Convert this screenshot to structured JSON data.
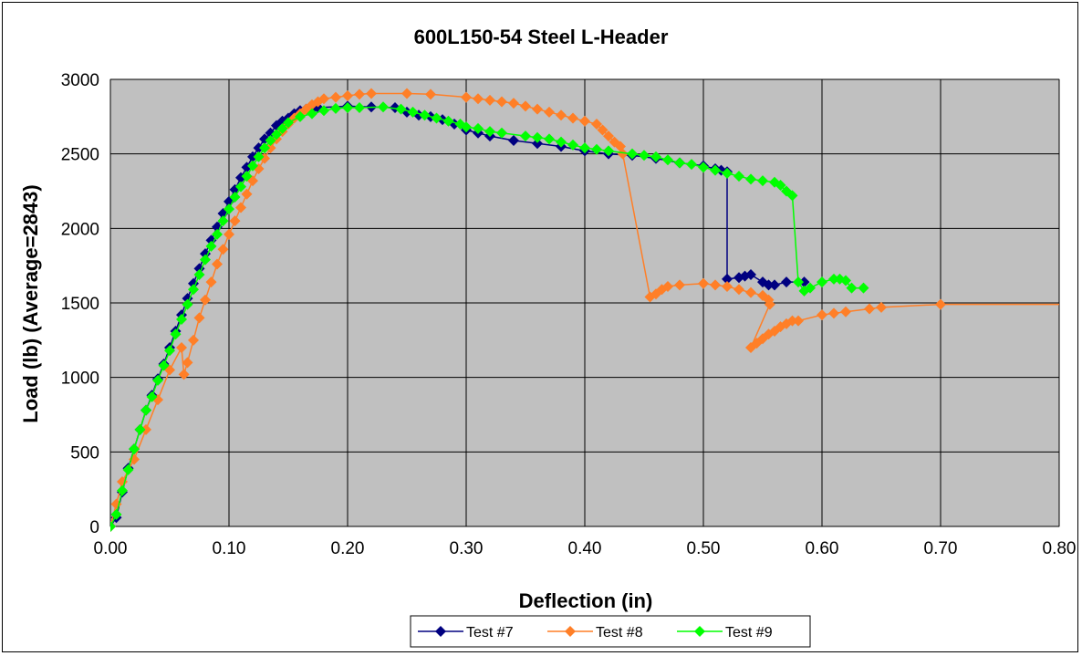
{
  "chart_data": {
    "type": "scatter",
    "title": "600L150-54 Steel L-Header",
    "xlabel": "Deflection (in)",
    "ylabel": "Load (lb) (Average=2843)",
    "xlim": [
      0,
      0.8
    ],
    "ylim": [
      0,
      3000
    ],
    "xticks": [
      "0.00",
      "0.10",
      "0.20",
      "0.30",
      "0.40",
      "0.50",
      "0.60",
      "0.70",
      "0.80"
    ],
    "yticks": [
      "0",
      "500",
      "1000",
      "1500",
      "2000",
      "2500",
      "3000"
    ],
    "grid": true,
    "plot_background": "#c0c0c0",
    "legend_position": "bottom",
    "series": [
      {
        "name": "Test #7",
        "color": "#000080",
        "marker": "diamond",
        "points": [
          [
            0.0,
            0
          ],
          [
            0.005,
            60
          ],
          [
            0.01,
            230
          ],
          [
            0.015,
            390
          ],
          [
            0.02,
            520
          ],
          [
            0.025,
            650
          ],
          [
            0.03,
            780
          ],
          [
            0.035,
            880
          ],
          [
            0.04,
            990
          ],
          [
            0.045,
            1090
          ],
          [
            0.05,
            1200
          ],
          [
            0.055,
            1310
          ],
          [
            0.06,
            1420
          ],
          [
            0.065,
            1530
          ],
          [
            0.07,
            1630
          ],
          [
            0.075,
            1730
          ],
          [
            0.08,
            1830
          ],
          [
            0.085,
            1920
          ],
          [
            0.09,
            2010
          ],
          [
            0.095,
            2100
          ],
          [
            0.1,
            2180
          ],
          [
            0.105,
            2260
          ],
          [
            0.11,
            2340
          ],
          [
            0.115,
            2410
          ],
          [
            0.12,
            2480
          ],
          [
            0.125,
            2540
          ],
          [
            0.13,
            2600
          ],
          [
            0.135,
            2640
          ],
          [
            0.14,
            2690
          ],
          [
            0.145,
            2720
          ],
          [
            0.15,
            2740
          ],
          [
            0.155,
            2770
          ],
          [
            0.16,
            2790
          ],
          [
            0.165,
            2800
          ],
          [
            0.17,
            2800
          ],
          [
            0.175,
            2810
          ],
          [
            0.2,
            2820
          ],
          [
            0.22,
            2815
          ],
          [
            0.24,
            2810
          ],
          [
            0.25,
            2780
          ],
          [
            0.26,
            2760
          ],
          [
            0.27,
            2750
          ],
          [
            0.28,
            2730
          ],
          [
            0.29,
            2700
          ],
          [
            0.3,
            2660
          ],
          [
            0.31,
            2640
          ],
          [
            0.32,
            2620
          ],
          [
            0.34,
            2590
          ],
          [
            0.36,
            2570
          ],
          [
            0.38,
            2550
          ],
          [
            0.4,
            2520
          ],
          [
            0.42,
            2500
          ],
          [
            0.44,
            2490
          ],
          [
            0.46,
            2470
          ],
          [
            0.48,
            2440
          ],
          [
            0.5,
            2420
          ],
          [
            0.51,
            2400
          ],
          [
            0.515,
            2390
          ],
          [
            0.52,
            2380
          ],
          [
            0.52,
            1660
          ],
          [
            0.53,
            1670
          ],
          [
            0.535,
            1680
          ],
          [
            0.54,
            1690
          ],
          [
            0.55,
            1640
          ],
          [
            0.555,
            1620
          ],
          [
            0.56,
            1620
          ],
          [
            0.57,
            1640
          ],
          [
            0.585,
            1640
          ]
        ]
      },
      {
        "name": "Test #8",
        "color": "#ff7f27",
        "marker": "diamond",
        "points": [
          [
            0.0,
            0
          ],
          [
            0.005,
            150
          ],
          [
            0.01,
            300
          ],
          [
            0.02,
            450
          ],
          [
            0.03,
            650
          ],
          [
            0.04,
            850
          ],
          [
            0.05,
            1050
          ],
          [
            0.06,
            1200
          ],
          [
            0.062,
            1020
          ],
          [
            0.065,
            1100
          ],
          [
            0.07,
            1250
          ],
          [
            0.075,
            1400
          ],
          [
            0.08,
            1520
          ],
          [
            0.085,
            1640
          ],
          [
            0.09,
            1760
          ],
          [
            0.095,
            1860
          ],
          [
            0.1,
            1960
          ],
          [
            0.105,
            2050
          ],
          [
            0.11,
            2140
          ],
          [
            0.115,
            2230
          ],
          [
            0.12,
            2320
          ],
          [
            0.125,
            2400
          ],
          [
            0.13,
            2470
          ],
          [
            0.135,
            2540
          ],
          [
            0.14,
            2600
          ],
          [
            0.145,
            2650
          ],
          [
            0.15,
            2700
          ],
          [
            0.155,
            2740
          ],
          [
            0.16,
            2770
          ],
          [
            0.165,
            2800
          ],
          [
            0.17,
            2830
          ],
          [
            0.175,
            2850
          ],
          [
            0.18,
            2870
          ],
          [
            0.19,
            2880
          ],
          [
            0.2,
            2890
          ],
          [
            0.21,
            2900
          ],
          [
            0.22,
            2905
          ],
          [
            0.25,
            2905
          ],
          [
            0.27,
            2900
          ],
          [
            0.3,
            2880
          ],
          [
            0.31,
            2870
          ],
          [
            0.32,
            2860
          ],
          [
            0.33,
            2850
          ],
          [
            0.34,
            2840
          ],
          [
            0.35,
            2820
          ],
          [
            0.36,
            2800
          ],
          [
            0.37,
            2780
          ],
          [
            0.38,
            2760
          ],
          [
            0.39,
            2740
          ],
          [
            0.4,
            2720
          ],
          [
            0.41,
            2700
          ],
          [
            0.415,
            2660
          ],
          [
            0.42,
            2620
          ],
          [
            0.425,
            2580
          ],
          [
            0.43,
            2550
          ],
          [
            0.432,
            2500
          ],
          [
            0.455,
            1540
          ],
          [
            0.46,
            1560
          ],
          [
            0.465,
            1590
          ],
          [
            0.47,
            1610
          ],
          [
            0.48,
            1620
          ],
          [
            0.5,
            1630
          ],
          [
            0.51,
            1620
          ],
          [
            0.52,
            1610
          ],
          [
            0.53,
            1590
          ],
          [
            0.54,
            1570
          ],
          [
            0.55,
            1550
          ],
          [
            0.555,
            1520
          ],
          [
            0.556,
            1490
          ],
          [
            0.54,
            1200
          ],
          [
            0.545,
            1230
          ],
          [
            0.55,
            1260
          ],
          [
            0.555,
            1290
          ],
          [
            0.56,
            1310
          ],
          [
            0.565,
            1340
          ],
          [
            0.57,
            1360
          ],
          [
            0.575,
            1380
          ],
          [
            0.58,
            1380
          ],
          [
            0.6,
            1420
          ],
          [
            0.61,
            1430
          ],
          [
            0.62,
            1440
          ],
          [
            0.64,
            1460
          ],
          [
            0.65,
            1470
          ],
          [
            0.7,
            1490
          ],
          [
            0.8,
            1490
          ]
        ]
      },
      {
        "name": "Test #9",
        "color": "#00ff00",
        "marker": "diamond",
        "points": [
          [
            0.0,
            0
          ],
          [
            0.005,
            80
          ],
          [
            0.01,
            240
          ],
          [
            0.015,
            380
          ],
          [
            0.02,
            520
          ],
          [
            0.025,
            650
          ],
          [
            0.03,
            780
          ],
          [
            0.035,
            870
          ],
          [
            0.04,
            980
          ],
          [
            0.045,
            1080
          ],
          [
            0.05,
            1180
          ],
          [
            0.055,
            1290
          ],
          [
            0.06,
            1390
          ],
          [
            0.065,
            1490
          ],
          [
            0.07,
            1590
          ],
          [
            0.075,
            1690
          ],
          [
            0.08,
            1790
          ],
          [
            0.085,
            1880
          ],
          [
            0.09,
            1960
          ],
          [
            0.095,
            2050
          ],
          [
            0.1,
            2130
          ],
          [
            0.105,
            2210
          ],
          [
            0.11,
            2280
          ],
          [
            0.115,
            2350
          ],
          [
            0.12,
            2420
          ],
          [
            0.125,
            2480
          ],
          [
            0.13,
            2540
          ],
          [
            0.135,
            2590
          ],
          [
            0.14,
            2630
          ],
          [
            0.145,
            2670
          ],
          [
            0.15,
            2710
          ],
          [
            0.16,
            2750
          ],
          [
            0.17,
            2770
          ],
          [
            0.18,
            2790
          ],
          [
            0.19,
            2805
          ],
          [
            0.2,
            2810
          ],
          [
            0.21,
            2810
          ],
          [
            0.23,
            2815
          ],
          [
            0.245,
            2800
          ],
          [
            0.255,
            2780
          ],
          [
            0.265,
            2760
          ],
          [
            0.275,
            2740
          ],
          [
            0.285,
            2720
          ],
          [
            0.295,
            2700
          ],
          [
            0.3,
            2680
          ],
          [
            0.31,
            2670
          ],
          [
            0.32,
            2650
          ],
          [
            0.33,
            2640
          ],
          [
            0.35,
            2620
          ],
          [
            0.36,
            2610
          ],
          [
            0.37,
            2600
          ],
          [
            0.38,
            2580
          ],
          [
            0.39,
            2560
          ],
          [
            0.4,
            2540
          ],
          [
            0.41,
            2530
          ],
          [
            0.42,
            2520
          ],
          [
            0.44,
            2500
          ],
          [
            0.45,
            2490
          ],
          [
            0.46,
            2480
          ],
          [
            0.47,
            2460
          ],
          [
            0.48,
            2440
          ],
          [
            0.49,
            2430
          ],
          [
            0.5,
            2410
          ],
          [
            0.51,
            2390
          ],
          [
            0.52,
            2370
          ],
          [
            0.53,
            2350
          ],
          [
            0.54,
            2330
          ],
          [
            0.55,
            2320
          ],
          [
            0.56,
            2310
          ],
          [
            0.565,
            2290
          ],
          [
            0.57,
            2250
          ],
          [
            0.575,
            2220
          ],
          [
            0.58,
            1640
          ],
          [
            0.585,
            1580
          ],
          [
            0.59,
            1600
          ],
          [
            0.6,
            1640
          ],
          [
            0.61,
            1660
          ],
          [
            0.615,
            1660
          ],
          [
            0.62,
            1650
          ],
          [
            0.625,
            1600
          ],
          [
            0.635,
            1600
          ]
        ]
      }
    ]
  }
}
